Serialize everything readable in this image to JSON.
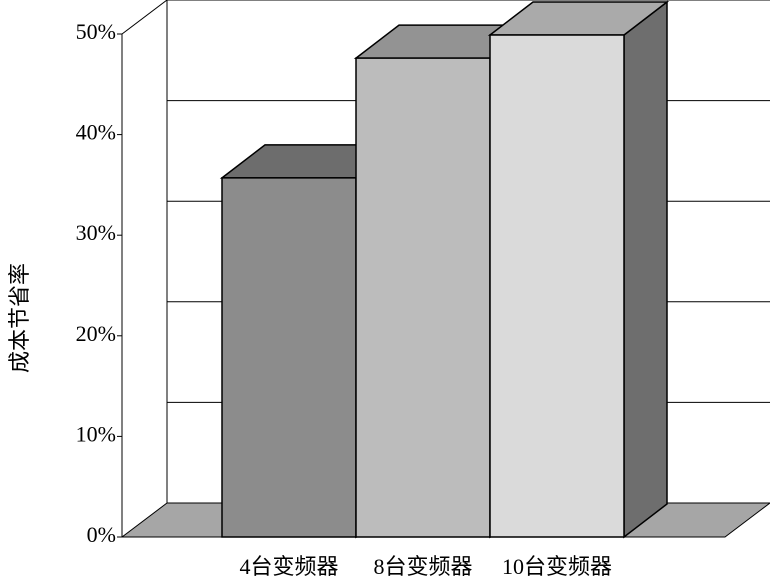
{
  "chart_data": {
    "type": "bar3d",
    "y_label": "成本节省率",
    "categories": [
      "4台变频器",
      "8台变频器",
      "10台变频器"
    ],
    "values": [
      35.7,
      47.6,
      49.9
    ],
    "colors": [
      "#8c8c8c",
      "#bcbcbc",
      "#dadada"
    ],
    "ylim": [
      0,
      50
    ],
    "yticks": [
      {
        "value": 0,
        "label": "0%"
      },
      {
        "value": 10,
        "label": "10%"
      },
      {
        "value": 20,
        "label": "20%"
      },
      {
        "value": 30,
        "label": "30%"
      },
      {
        "value": 40,
        "label": "40%"
      },
      {
        "value": 50,
        "label": "50%"
      }
    ],
    "grid": true
  }
}
